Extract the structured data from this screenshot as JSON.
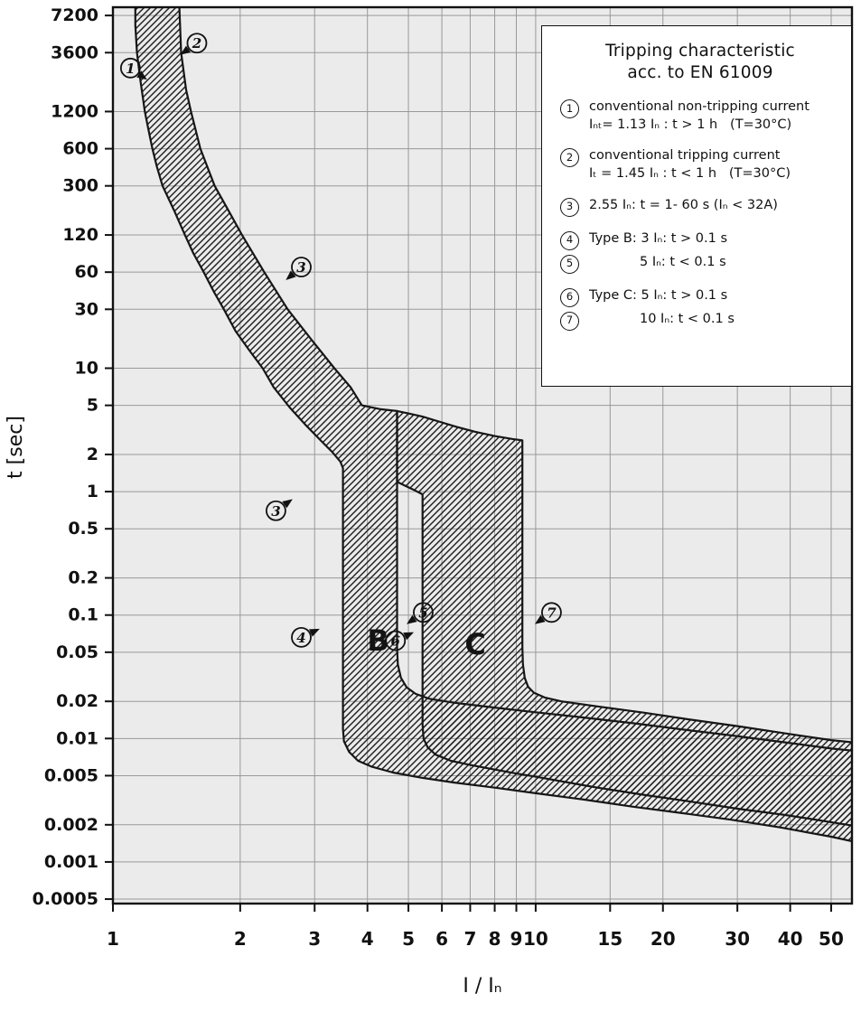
{
  "legend": {
    "title_lines": [
      "Tripping characteristic",
      "acc. to EN 61009"
    ],
    "items": [
      {
        "num": "1",
        "lines": [
          "conventional non-tripping current",
          "Iₙₜ= 1.13 Iₙ : t > 1 h   (T=30°C)"
        ]
      },
      {
        "num": "2",
        "lines": [
          "conventional tripping current",
          "Iₜ = 1.45 Iₙ : t < 1 h   (T=30°C)"
        ]
      },
      {
        "num": "3",
        "lines": [
          "2.55 Iₙ: t = 1- 60 s (Iₙ < 32A)"
        ]
      },
      {
        "num": "4",
        "lines": [
          "Type B: 3 Iₙ: t > 0.1 s"
        ]
      },
      {
        "num": "5",
        "lines": [
          "5 Iₙ: t < 0.1 s"
        ],
        "indent": true
      },
      {
        "num": "6",
        "lines": [
          "Type C: 5 Iₙ: t > 0.1 s"
        ]
      },
      {
        "num": "7",
        "lines": [
          "10 Iₙ: t < 0.1 s"
        ],
        "indent": true
      }
    ]
  },
  "chart_data": {
    "type": "area",
    "title": "Tripping characteristic acc. to EN 61009",
    "grid": true,
    "legend_position": "top-right",
    "plot_background": "#ebebeb",
    "grid_color": "#999999",
    "line_color": "#161616",
    "x_axis": {
      "label": "I / Iₙ",
      "scale": "log",
      "range": [
        1,
        56
      ],
      "ticks": [
        1,
        2,
        3,
        4,
        5,
        6,
        7,
        8,
        9,
        10,
        15,
        20,
        30,
        40,
        50
      ]
    },
    "y_axis": {
      "label": "t [sec]",
      "scale": "log",
      "range": [
        0.00046,
        8400
      ],
      "ticks": [
        7200,
        3600,
        1200,
        600,
        300,
        120,
        60,
        30,
        10,
        5,
        2,
        1,
        0.5,
        0.2,
        0.1,
        0.05,
        0.02,
        0.01,
        0.005,
        0.002,
        0.001,
        0.0005
      ]
    },
    "bands": [
      {
        "name": "type-B-characteristic",
        "outline": [
          [
            1.43,
            12000
          ],
          [
            1.45,
            3600
          ],
          [
            1.49,
            1800
          ],
          [
            1.53,
            1200
          ],
          [
            1.61,
            600
          ],
          [
            1.74,
            300
          ],
          [
            1.86,
            200
          ],
          [
            2.02,
            120
          ],
          [
            2.28,
            60
          ],
          [
            2.59,
            30
          ],
          [
            2.95,
            17
          ],
          [
            3.34,
            10
          ],
          [
            3.65,
            7
          ],
          [
            3.88,
            5
          ],
          [
            4.3,
            4.65
          ],
          [
            4.7,
            4.5
          ],
          [
            4.7,
            0.055
          ],
          [
            4.72,
            0.04
          ],
          [
            4.8,
            0.031
          ],
          [
            4.95,
            0.026
          ],
          [
            5.2,
            0.023
          ],
          [
            5.6,
            0.021
          ],
          [
            6.4,
            0.0195
          ],
          [
            8,
            0.0178
          ],
          [
            10,
            0.0163
          ],
          [
            13,
            0.0148
          ],
          [
            17,
            0.0133
          ],
          [
            22,
            0.0119
          ],
          [
            29,
            0.0106
          ],
          [
            38,
            0.0094
          ],
          [
            50,
            0.0083
          ],
          [
            60,
            0.0078
          ],
          [
            60,
            0.0014
          ],
          [
            50,
            0.0016
          ],
          [
            38,
            0.0019
          ],
          [
            29,
            0.0022
          ],
          [
            22,
            0.0025
          ],
          [
            17,
            0.0028
          ],
          [
            13,
            0.0032
          ],
          [
            10,
            0.0036
          ],
          [
            8,
            0.004
          ],
          [
            6.4,
            0.0044
          ],
          [
            5.4,
            0.0048
          ],
          [
            4.6,
            0.0053
          ],
          [
            4.1,
            0.0059
          ],
          [
            3.8,
            0.0066
          ],
          [
            3.62,
            0.0078
          ],
          [
            3.52,
            0.0095
          ],
          [
            3.5,
            0.012
          ],
          [
            3.5,
            1.55
          ],
          [
            3.45,
            1.75
          ],
          [
            3.3,
            2.1
          ],
          [
            3.1,
            2.6
          ],
          [
            2.85,
            3.5
          ],
          [
            2.62,
            4.8
          ],
          [
            2.4,
            7
          ],
          [
            2.26,
            10
          ],
          [
            2.1,
            14
          ],
          [
            1.95,
            20
          ],
          [
            1.83,
            30
          ],
          [
            1.73,
            42
          ],
          [
            1.64,
            60
          ],
          [
            1.55,
            85
          ],
          [
            1.48,
            120
          ],
          [
            1.4,
            185
          ],
          [
            1.31,
            300
          ],
          [
            1.27,
            430
          ],
          [
            1.24,
            600
          ],
          [
            1.21,
            900
          ],
          [
            1.19,
            1200
          ],
          [
            1.16,
            2200
          ],
          [
            1.14,
            3600
          ],
          [
            1.13,
            6000
          ],
          [
            1.13,
            12000
          ]
        ]
      },
      {
        "name": "type-C-characteristic",
        "outline": [
          [
            4.7,
            4.5
          ],
          [
            5.0,
            4.3
          ],
          [
            5.4,
            4.05
          ],
          [
            5.9,
            3.7
          ],
          [
            6.5,
            3.35
          ],
          [
            7.2,
            3.05
          ],
          [
            8.0,
            2.82
          ],
          [
            8.8,
            2.67
          ],
          [
            9.3,
            2.6
          ],
          [
            9.3,
            0.055
          ],
          [
            9.33,
            0.04
          ],
          [
            9.42,
            0.031
          ],
          [
            9.6,
            0.0262
          ],
          [
            9.9,
            0.0235
          ],
          [
            10.5,
            0.0215
          ],
          [
            11.5,
            0.02
          ],
          [
            14,
            0.0182
          ],
          [
            18,
            0.0162
          ],
          [
            23,
            0.0143
          ],
          [
            30,
            0.0126
          ],
          [
            39,
            0.011
          ],
          [
            50,
            0.0097
          ],
          [
            60,
            0.0091
          ],
          [
            60,
            0.0019
          ],
          [
            50,
            0.0021
          ],
          [
            39,
            0.0024
          ],
          [
            30,
            0.0027
          ],
          [
            23,
            0.0031
          ],
          [
            18,
            0.0035
          ],
          [
            14,
            0.004
          ],
          [
            11.5,
            0.0045
          ],
          [
            10,
            0.0049
          ],
          [
            9,
            0.0052
          ],
          [
            8,
            0.0056
          ],
          [
            7,
            0.0061
          ],
          [
            6.3,
            0.0066
          ],
          [
            5.8,
            0.0074
          ],
          [
            5.55,
            0.0085
          ],
          [
            5.43,
            0.01
          ],
          [
            5.4,
            0.013
          ],
          [
            5.4,
            0.95
          ],
          [
            5.1,
            1.05
          ],
          [
            4.9,
            1.12
          ],
          [
            4.7,
            1.2
          ]
        ]
      }
    ],
    "markers": [
      {
        "label": "1",
        "x": 1.1,
        "t": 2700,
        "arrow_deg": 35
      },
      {
        "label": "2",
        "x": 1.58,
        "t": 4300,
        "arrow_deg": 145
      },
      {
        "label": "3",
        "x": 2.79,
        "t": 66,
        "arrow_deg": 140
      },
      {
        "label": "3",
        "x": 2.43,
        "t": 0.7,
        "arrow_deg": -35
      },
      {
        "label": "4",
        "x": 2.79,
        "t": 0.066,
        "arrow_deg": -25
      },
      {
        "label": "5",
        "x": 5.42,
        "t": 0.105,
        "arrow_deg": 145
      },
      {
        "label": "6",
        "x": 4.66,
        "t": 0.062,
        "arrow_deg": -25
      },
      {
        "label": "7",
        "x": 10.9,
        "t": 0.105,
        "arrow_deg": 145
      }
    ],
    "band_labels": [
      {
        "text": "B",
        "x": 4.24,
        "t": 0.062
      },
      {
        "text": "C",
        "x": 7.2,
        "t": 0.058
      }
    ]
  }
}
